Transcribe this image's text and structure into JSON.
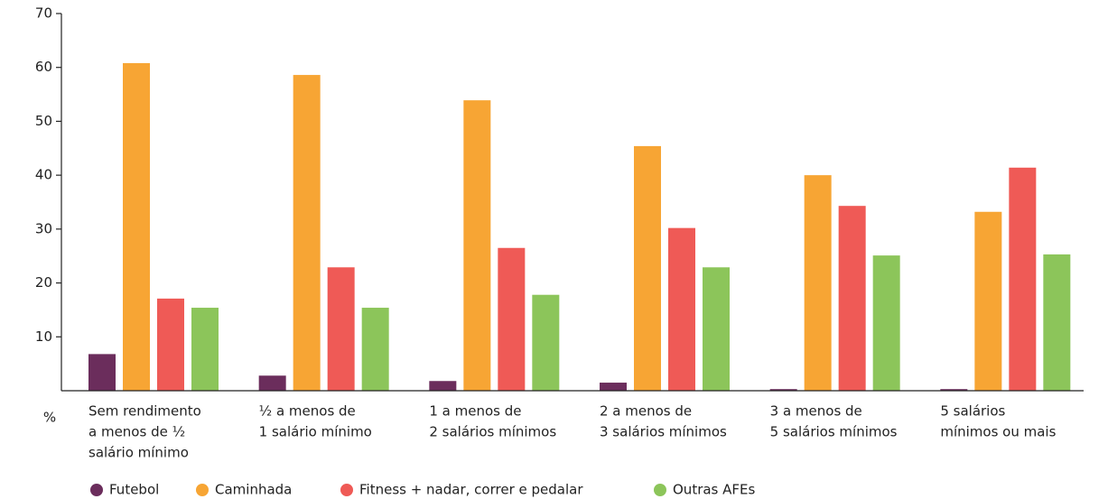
{
  "chart_data": {
    "type": "bar",
    "y_label": "%",
    "categories": [
      [
        "Sem rendimento",
        "a menos de ½",
        "salário mínimo"
      ],
      [
        "½ a menos de",
        "1 salário mínimo"
      ],
      [
        "1 a menos de",
        "2 salários mínimos"
      ],
      [
        "2 a menos de",
        "3 salários mínimos"
      ],
      [
        "3 a menos de",
        "5 salários mínimos"
      ],
      [
        "5 salários",
        "mínimos ou mais"
      ]
    ],
    "series": [
      {
        "name": "Futebol",
        "color": "#6b2d5c",
        "values": [
          6.8,
          2.8,
          1.8,
          1.5,
          0.3,
          0.3
        ]
      },
      {
        "name": "Caminhada",
        "color": "#f7a534",
        "values": [
          60.8,
          58.6,
          53.9,
          45.4,
          40.0,
          33.2
        ]
      },
      {
        "name": "Fitness + nadar, correr e pedalar",
        "color": "#ef5a56",
        "values": [
          17.1,
          22.9,
          26.5,
          30.2,
          34.3,
          41.4
        ]
      },
      {
        "name": "Outras AFEs",
        "color": "#8cc55a",
        "values": [
          15.4,
          15.4,
          17.8,
          22.9,
          25.1,
          25.3
        ]
      }
    ],
    "ylim": [
      0,
      70
    ],
    "yticks": [
      10,
      20,
      30,
      40,
      50,
      60,
      70
    ],
    "legend": "bottom"
  }
}
